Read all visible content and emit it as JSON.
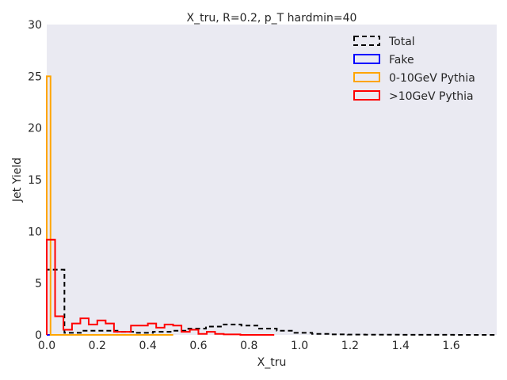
{
  "chart_data": {
    "type": "histogram",
    "title": "X_tru, R=0.2, p_T hardmin=40",
    "xlabel": "X_tru",
    "ylabel": "Jet Yield",
    "xlim": [
      0.0,
      1.78
    ],
    "ylim": [
      0,
      30
    ],
    "xticks": [
      "0.0",
      "0.2",
      "0.4",
      "0.6",
      "0.8",
      "1.0",
      "1.2",
      "1.4",
      "1.6"
    ],
    "yticks": [
      "0",
      "5",
      "10",
      "15",
      "20",
      "25",
      "30"
    ],
    "grid": false,
    "legend_position": "top-right",
    "background": "#eaeaf2",
    "series": [
      {
        "name": "Total",
        "color": "#000000",
        "style": "dashed",
        "edges": [
          0.0,
          0.07,
          0.14,
          0.21,
          0.28,
          0.35,
          0.42,
          0.49,
          0.56,
          0.63,
          0.7,
          0.77,
          0.84,
          0.91,
          0.98,
          1.05,
          1.12,
          1.19,
          1.26,
          1.33,
          1.4,
          1.47,
          1.54,
          1.61,
          1.68,
          1.78
        ],
        "values": [
          6.3,
          0.2,
          0.4,
          0.4,
          0.3,
          0.2,
          0.3,
          0.4,
          0.6,
          0.8,
          1.0,
          0.9,
          0.6,
          0.4,
          0.2,
          0.1,
          0.05,
          0.03,
          0.02,
          0.02,
          0.01,
          0.01,
          0.01,
          0.0,
          0.0
        ]
      },
      {
        "name": "Fake",
        "color": "#0000ff",
        "style": "solid",
        "edges": [
          0.0,
          0.5
        ],
        "values": [
          0.0
        ]
      },
      {
        "name": "0-10GeV Pythia",
        "color": "#ffa500",
        "style": "solid",
        "edges": [
          0.0,
          0.015,
          0.5
        ],
        "values": [
          25.0,
          0.0
        ]
      },
      {
        "name": ">10GeV Pythia",
        "color": "#ff0000",
        "style": "solid",
        "edges": [
          0.0,
          0.033,
          0.066,
          0.1,
          0.133,
          0.166,
          0.2,
          0.233,
          0.266,
          0.3,
          0.333,
          0.366,
          0.4,
          0.433,
          0.466,
          0.5,
          0.533,
          0.566,
          0.6,
          0.633,
          0.666,
          0.7,
          0.733,
          0.766,
          0.8,
          0.833,
          0.866,
          0.9
        ],
        "values": [
          9.2,
          1.8,
          0.5,
          1.1,
          1.6,
          1.0,
          1.4,
          1.1,
          0.3,
          0.3,
          0.9,
          0.9,
          1.1,
          0.7,
          1.0,
          0.9,
          0.3,
          0.5,
          0.1,
          0.3,
          0.1,
          0.05,
          0.05,
          0.0,
          0.0,
          0.0,
          0.0
        ]
      }
    ]
  }
}
